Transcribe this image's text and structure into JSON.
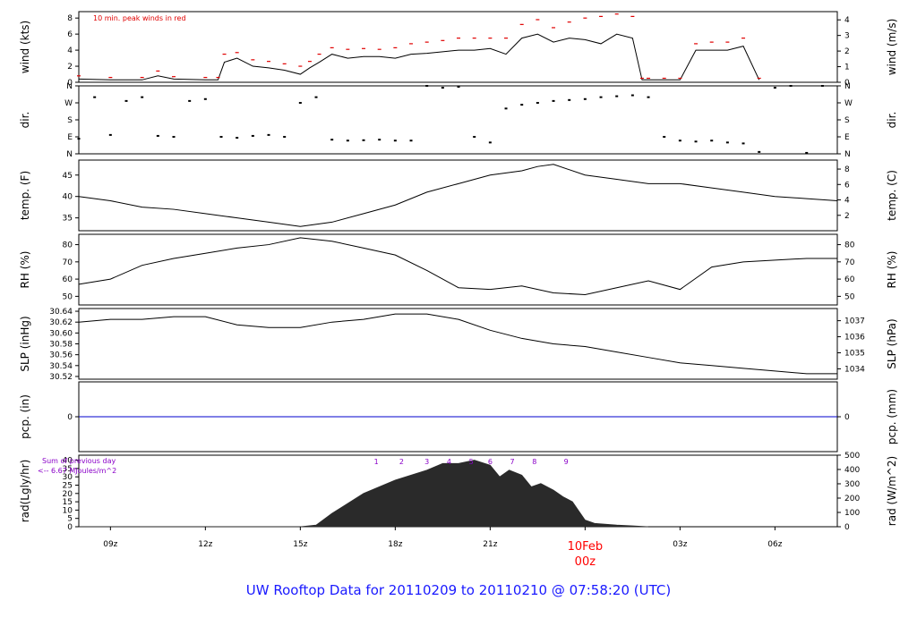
{
  "colors": {
    "background": "#ffffff",
    "frame": "#000000",
    "line": "#000000",
    "peak": "#e00000",
    "pcp": "#0000cc",
    "rad_fill": "#2a2a2a",
    "rad_text": "#8a00c8",
    "date_text": "#ff0000",
    "title": "#1a1aff"
  },
  "title": "UW Rooftop Data for 20110209  to  20110210 @ 07:58:20  (UTC)",
  "x_axis": {
    "tick_labels": [
      "09z",
      "12z",
      "15z",
      "18z",
      "21z",
      "03z",
      "06z"
    ],
    "tick_hours": [
      9,
      12,
      15,
      18,
      21,
      27,
      30
    ],
    "range_hours": [
      8,
      31.97
    ],
    "date_label": "10Feb",
    "midnight_label": "00z",
    "midnight_hour": 24
  },
  "chart_data": [
    {
      "type": "line",
      "panel": "wind",
      "ylabel": "wind (kts)",
      "ylabel_right": "wind (m/s)",
      "ylim": [
        0,
        8.8
      ],
      "yticks": [
        0,
        2,
        4,
        6,
        8
      ],
      "yticks_right": [
        0,
        1,
        2,
        3,
        4
      ],
      "annotation": "10 min. peak winds in red",
      "x": [
        8,
        9,
        10,
        10.5,
        11,
        12,
        12.4,
        12.6,
        13,
        13.5,
        14,
        14.5,
        15,
        15.3,
        15.6,
        16,
        16.5,
        17,
        17.5,
        18,
        18.5,
        19,
        19.5,
        20,
        20.5,
        21,
        21.5,
        22,
        22.5,
        23,
        23.5,
        24,
        24.5,
        25,
        25.5,
        25.8,
        26,
        26.5,
        27,
        27.5,
        28,
        28.5,
        29,
        29.5
      ],
      "y": [
        0.4,
        0.3,
        0.3,
        0.8,
        0.4,
        0.3,
        0.3,
        2.5,
        3.0,
        2.0,
        1.8,
        1.5,
        1.0,
        1.8,
        2.5,
        3.5,
        3.0,
        3.2,
        3.2,
        3.0,
        3.5,
        3.6,
        3.8,
        4.0,
        4.0,
        4.2,
        3.5,
        5.5,
        6.0,
        5.0,
        5.5,
        5.3,
        4.8,
        6.0,
        5.5,
        0.3,
        0.3,
        0.3,
        0.3,
        4.0,
        4.0,
        4.0,
        4.5,
        0.3
      ],
      "peaks": [
        0.8,
        0.6,
        0.6,
        1.4,
        0.7,
        0.6,
        0.6,
        3.5,
        3.7,
        2.8,
        2.6,
        2.3,
        2.0,
        2.6,
        3.5,
        4.3,
        4.1,
        4.2,
        4.1,
        4.3,
        4.8,
        5.0,
        5.2,
        5.5,
        5.5,
        5.5,
        5.5,
        7.2,
        7.8,
        6.8,
        7.5,
        8.0,
        8.2,
        8.5,
        8.2,
        0.5,
        0.5,
        0.5,
        0.5,
        4.8,
        5.0,
        5.0,
        5.5,
        0.5
      ]
    },
    {
      "type": "scatter",
      "panel": "dir",
      "ylabel": "dir.",
      "ylabel_right": "dir.",
      "ylim": [
        0,
        360
      ],
      "yticks": [
        0,
        90,
        180,
        270,
        360
      ],
      "ytick_labels": [
        "N",
        "E",
        "S",
        "W",
        "N"
      ],
      "x": [
        8,
        8.5,
        9,
        9.5,
        10,
        10.5,
        11,
        11.5,
        12,
        12.5,
        13,
        13.5,
        14,
        14.5,
        15,
        15.5,
        16,
        16.5,
        17,
        17.5,
        18,
        18.5,
        19,
        19.5,
        20,
        20.5,
        21,
        21.5,
        22,
        22.5,
        23,
        23.5,
        24,
        24.5,
        25,
        25.5,
        26,
        26.5,
        27,
        27.5,
        28,
        28.5,
        29,
        29.5,
        30,
        30.5,
        31,
        31.5
      ],
      "y": [
        80,
        300,
        100,
        280,
        300,
        95,
        90,
        280,
        290,
        90,
        85,
        95,
        100,
        90,
        270,
        300,
        75,
        70,
        72,
        75,
        70,
        70,
        360,
        350,
        355,
        90,
        60,
        240,
        260,
        270,
        280,
        285,
        290,
        300,
        305,
        310,
        300,
        90,
        70,
        65,
        70,
        60,
        55,
        10,
        350,
        360,
        5,
        360
      ]
    },
    {
      "type": "line",
      "panel": "temp",
      "ylabel": "temp. (F)",
      "ylabel_right": "temp. (C)",
      "ylim": [
        32,
        48.5
      ],
      "yticks": [
        35,
        40,
        45
      ],
      "yticks_right_c": [
        2,
        4,
        6,
        8
      ],
      "x": [
        8,
        9,
        10,
        11,
        12,
        13,
        14,
        15,
        16,
        17,
        18,
        19,
        20,
        21,
        22,
        22.5,
        23,
        24,
        25,
        26,
        27,
        28,
        29,
        30,
        31,
        31.97
      ],
      "y": [
        40,
        39,
        37.5,
        37,
        36,
        35,
        34,
        33,
        34,
        36,
        38,
        41,
        43,
        45,
        46,
        47,
        47.5,
        45,
        44,
        43,
        43,
        42,
        41,
        40,
        39.5,
        39
      ]
    },
    {
      "type": "line",
      "panel": "rh",
      "ylabel": "RH (%)",
      "ylabel_right": "RH (%)",
      "ylim": [
        45,
        86
      ],
      "yticks": [
        50,
        60,
        70,
        80
      ],
      "x": [
        8,
        9,
        10,
        11,
        12,
        13,
        14,
        15,
        16,
        17,
        18,
        19,
        20,
        21,
        22,
        23,
        24,
        25,
        26,
        27,
        28,
        29,
        30,
        31,
        31.97
      ],
      "y": [
        57,
        60,
        68,
        72,
        75,
        78,
        80,
        84,
        82,
        78,
        74,
        65,
        55,
        54,
        56,
        52,
        51,
        55,
        59,
        54,
        67,
        70,
        71,
        72,
        72
      ]
    },
    {
      "type": "line",
      "panel": "slp",
      "ylabel": "SLP (inHg)",
      "ylabel_right": "SLP (hPa)",
      "ylim": [
        30.515,
        30.645
      ],
      "yticks": [
        30.52,
        30.54,
        30.56,
        30.58,
        30.6,
        30.62,
        30.64
      ],
      "ytick_labels": [
        "30.52",
        "30.54",
        "30.56",
        "30.58",
        "30.60",
        "30.62",
        "30.64"
      ],
      "yticks_right_hpa": [
        1034,
        1035,
        1036,
        1037
      ],
      "x": [
        8,
        9,
        10,
        11,
        12,
        13,
        14,
        15,
        16,
        17,
        18,
        19,
        20,
        21,
        22,
        23,
        24,
        25,
        26,
        27,
        28,
        29,
        30,
        31,
        31.97
      ],
      "y": [
        30.62,
        30.625,
        30.625,
        30.63,
        30.63,
        30.615,
        30.61,
        30.61,
        30.62,
        30.625,
        30.635,
        30.635,
        30.625,
        30.605,
        30.59,
        30.58,
        30.575,
        30.565,
        30.555,
        30.545,
        30.54,
        30.535,
        30.53,
        30.525,
        30.525
      ]
    },
    {
      "type": "line",
      "panel": "pcp",
      "ylabel": "pcp. (in)",
      "ylabel_right": "pcp. (mm)",
      "yticks": [
        0
      ],
      "value": 0
    },
    {
      "type": "area",
      "panel": "rad",
      "ylabel": "rad(Lgly/hr)",
      "ylabel_right": "rad (W/m^2)",
      "ylim": [
        0,
        43
      ],
      "yticks": [
        0,
        5,
        10,
        15,
        20,
        25,
        30,
        35,
        40
      ],
      "yticks_right_wm2": [
        0,
        100,
        200,
        300,
        400,
        500
      ],
      "summary_line1": "Sum of previous day",
      "summary_line2": "<-- 6.67 MJoules/m^2",
      "hour_marks": [
        "1",
        "2",
        "3",
        "4",
        "5",
        "6",
        "7",
        "8",
        "9"
      ],
      "hour_mark_hours": [
        17.4,
        18.2,
        19.0,
        19.7,
        20.4,
        21.0,
        21.7,
        22.4,
        23.4
      ],
      "x": [
        8,
        15,
        15.5,
        16,
        17,
        18,
        19,
        19.5,
        20,
        20.5,
        21,
        21.3,
        21.6,
        22,
        22.3,
        22.6,
        23,
        23.3,
        23.6,
        24,
        24.3,
        25,
        25.5,
        26
      ],
      "y": [
        0,
        0,
        1,
        8,
        20,
        28,
        34,
        38,
        38,
        40,
        37,
        30,
        34,
        31,
        24,
        26,
        22,
        18,
        15,
        4,
        2,
        1,
        0.5,
        0
      ]
    }
  ]
}
